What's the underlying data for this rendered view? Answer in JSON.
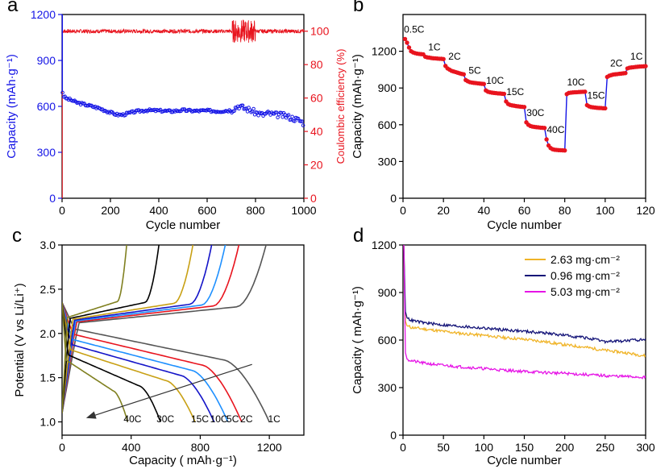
{
  "chart_data": [
    {
      "id": "a",
      "type": "scatter",
      "panel_label": "a",
      "xlabel": "Cycle number",
      "ylabel": "Capacity (mAh·g⁻¹)",
      "ylabel_right": "Coulombic efficiency (%)",
      "xlim": [
        0,
        1000
      ],
      "ylim": [
        0,
        1200
      ],
      "ylim_right": [
        0,
        110
      ],
      "xticks": [
        0,
        200,
        400,
        600,
        800,
        1000
      ],
      "yticks": [
        0,
        300,
        600,
        900,
        1200
      ],
      "yticks_right": [
        0,
        20,
        40,
        60,
        80,
        100
      ],
      "colors": {
        "capacity": "#1414e6",
        "efficiency": "#e8141e"
      },
      "series": [
        {
          "name": "Capacity",
          "axis": "left",
          "x": [
            1,
            5,
            10,
            20,
            40,
            60,
            100,
            150,
            200,
            230,
            250,
            300,
            350,
            400,
            450,
            500,
            550,
            600,
            650,
            700,
            730,
            750,
            780,
            800,
            830,
            850,
            880,
            900,
            930,
            950,
            980,
            1000
          ],
          "values": [
            700,
            670,
            660,
            650,
            640,
            625,
            610,
            590,
            560,
            545,
            545,
            565,
            575,
            572,
            568,
            575,
            570,
            572,
            568,
            575,
            605,
            590,
            575,
            560,
            545,
            555,
            545,
            545,
            535,
            525,
            510,
            490
          ]
        },
        {
          "name": "Coulombic efficiency",
          "axis": "right",
          "x": [
            1,
            100,
            200,
            300,
            400,
            500,
            600,
            650,
            700,
            720,
            740,
            760,
            780,
            800,
            850,
            900,
            950,
            1000
          ],
          "values": [
            100,
            100,
            100,
            100,
            100,
            100,
            100,
            100,
            100,
            100,
            100,
            100,
            100,
            100,
            100,
            100,
            100,
            100
          ]
        }
      ]
    },
    {
      "id": "b",
      "type": "scatter",
      "panel_label": "b",
      "xlabel": "Cycle number",
      "ylabel": "Capacity (mAh·g⁻¹)",
      "xlim": [
        0,
        120
      ],
      "ylim": [
        0,
        1500
      ],
      "xticks": [
        0,
        20,
        40,
        60,
        80,
        100,
        120
      ],
      "yticks": [
        0,
        300,
        600,
        900,
        1200
      ],
      "colors": {
        "line": "#1414e6",
        "marker": "#e8141e"
      },
      "segments": [
        {
          "rate": "0.5C",
          "start": 1,
          "end": 10,
          "values": [
            1300,
            1270,
            1230,
            1200,
            1190,
            1185,
            1180,
            1178,
            1176,
            1175
          ]
        },
        {
          "rate": "1C",
          "start": 11,
          "end": 20,
          "values": [
            1155,
            1150,
            1148,
            1145,
            1143,
            1142,
            1140,
            1139,
            1138,
            1136
          ]
        },
        {
          "rate": "2C",
          "start": 21,
          "end": 30,
          "values": [
            1080,
            1060,
            1050,
            1040,
            1035,
            1030,
            1025,
            1020,
            1015,
            1012
          ]
        },
        {
          "rate": "5C",
          "start": 31,
          "end": 40,
          "values": [
            965,
            955,
            948,
            945,
            942,
            940,
            938,
            936,
            934,
            933
          ]
        },
        {
          "rate": "10C",
          "start": 41,
          "end": 50,
          "values": [
            880,
            870,
            865,
            862,
            860,
            858,
            856,
            855,
            853,
            852
          ]
        },
        {
          "rate": "15C",
          "start": 51,
          "end": 60,
          "values": [
            790,
            770,
            762,
            758,
            755,
            752,
            750,
            748,
            746,
            745
          ]
        },
        {
          "rate": "30C",
          "start": 61,
          "end": 70,
          "values": [
            620,
            600,
            590,
            585,
            582,
            580,
            578,
            576,
            575,
            574
          ]
        },
        {
          "rate": "40C",
          "start": 71,
          "end": 80,
          "values": [
            480,
            430,
            410,
            400,
            396,
            394,
            393,
            392,
            391,
            390
          ]
        },
        {
          "rate": "10C",
          "start": 81,
          "end": 90,
          "values": [
            850,
            860,
            862,
            864,
            865,
            866,
            867,
            868,
            869,
            870
          ]
        },
        {
          "rate": "15C",
          "start": 91,
          "end": 100,
          "values": [
            760,
            750,
            745,
            742,
            740,
            738,
            737,
            736,
            735,
            734
          ]
        },
        {
          "rate": "2C",
          "start": 101,
          "end": 110,
          "values": [
            990,
            1000,
            1005,
            1010,
            1012,
            1014,
            1016,
            1018,
            1020,
            1022
          ]
        },
        {
          "rate": "1C",
          "start": 111,
          "end": 120,
          "values": [
            1060,
            1065,
            1068,
            1070,
            1072,
            1074,
            1075,
            1076,
            1077,
            1078
          ]
        }
      ]
    },
    {
      "id": "c",
      "type": "line",
      "panel_label": "c",
      "xlabel": "Capacity ( mAh·g⁻¹)",
      "ylabel": "Potential (V vs Li/Li⁺)",
      "xlim": [
        0,
        1400
      ],
      "ylim": [
        0.85,
        3.0
      ],
      "xticks": [
        0,
        400,
        800,
        1200
      ],
      "yticks": [
        1.0,
        1.5,
        2.0,
        2.5,
        3.0
      ],
      "series": [
        {
          "name": "1C",
          "color": "#555555",
          "capacity": 1200
        },
        {
          "name": "2C",
          "color": "#e8141e",
          "capacity": 1040
        },
        {
          "name": "5C",
          "color": "#1e90ff",
          "capacity": 960
        },
        {
          "name": "10C",
          "color": "#1414c8",
          "capacity": 880
        },
        {
          "name": "15C",
          "color": "#c8a014",
          "capacity": 770
        },
        {
          "name": "30C",
          "color": "#000000",
          "capacity": 570
        },
        {
          "name": "40C",
          "color": "#808020",
          "capacity": 380
        }
      ],
      "annotations": {
        "arrow_from": [
          1100,
          1.65
        ],
        "arrow_to": [
          150,
          1.05
        ],
        "rate_labels": [
          "40C",
          "30C",
          "15C",
          "10C",
          "5C",
          "2C",
          "1C"
        ]
      }
    },
    {
      "id": "d",
      "type": "line",
      "panel_label": "d",
      "xlabel": "Cycle number",
      "ylabel": "Capacity ( mAh·g⁻¹)",
      "xlim": [
        0,
        300
      ],
      "ylim": [
        0,
        1200
      ],
      "xticks": [
        0,
        50,
        100,
        150,
        200,
        250,
        300
      ],
      "yticks": [
        0,
        300,
        600,
        900,
        1200
      ],
      "legend_position": "top-right",
      "series": [
        {
          "name": "2.63 mg·cm⁻²",
          "color": "#f0b428",
          "x": [
            1,
            3,
            5,
            10,
            25,
            50,
            75,
            100,
            125,
            150,
            175,
            200,
            225,
            250,
            275,
            300
          ],
          "values": [
            1200,
            720,
            690,
            680,
            670,
            655,
            640,
            630,
            615,
            605,
            590,
            570,
            555,
            535,
            520,
            500
          ]
        },
        {
          "name": "0.96 mg·cm⁻²",
          "color": "#141478",
          "x": [
            1,
            3,
            5,
            10,
            25,
            50,
            75,
            100,
            125,
            150,
            175,
            200,
            225,
            250,
            275,
            300
          ],
          "values": [
            1200,
            780,
            740,
            725,
            710,
            695,
            685,
            675,
            665,
            655,
            645,
            630,
            615,
            590,
            595,
            605
          ]
        },
        {
          "name": "5.03 mg·cm⁻²",
          "color": "#e614e6",
          "x": [
            1,
            3,
            5,
            10,
            25,
            50,
            75,
            100,
            125,
            150,
            175,
            200,
            225,
            250,
            275,
            300
          ],
          "values": [
            1200,
            520,
            480,
            470,
            455,
            440,
            430,
            420,
            410,
            402,
            395,
            390,
            382,
            375,
            370,
            365
          ]
        }
      ]
    }
  ]
}
